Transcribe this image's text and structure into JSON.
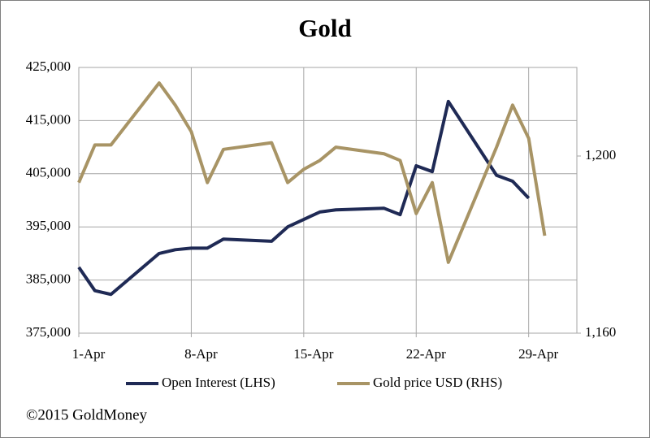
{
  "chart_data": {
    "type": "line",
    "title": "Gold",
    "x": [
      1,
      2,
      3,
      6,
      7,
      8,
      9,
      10,
      13,
      14,
      15,
      16,
      17,
      20,
      21,
      22,
      23,
      24,
      27,
      28,
      29,
      30
    ],
    "xlim": [
      1,
      32
    ],
    "xticks": [
      {
        "value": 1,
        "label": "1-Apr"
      },
      {
        "value": 8,
        "label": "8-Apr"
      },
      {
        "value": 15,
        "label": "15-Apr"
      },
      {
        "value": 22,
        "label": "22-Apr"
      },
      {
        "value": 29,
        "label": "29-Apr"
      }
    ],
    "ylim": [
      375000,
      425000
    ],
    "yticks": [
      {
        "value": 375000,
        "label": "375,000"
      },
      {
        "value": 385000,
        "label": "385,000"
      },
      {
        "value": 395000,
        "label": "395,000"
      },
      {
        "value": 405000,
        "label": "405,000"
      },
      {
        "value": 415000,
        "label": "415,000"
      },
      {
        "value": 425000,
        "label": "425,000"
      }
    ],
    "y2lim": [
      1160,
      1220
    ],
    "y2ticks": [
      {
        "value": 1160,
        "label": "1,160"
      },
      {
        "value": 1200,
        "label": "1,200"
      }
    ],
    "grid": true,
    "legend": "bottom",
    "series": [
      {
        "name": "Open Interest (LHS)",
        "color": "#1f2a55",
        "values": [
          387400,
          383000,
          382300,
          390000,
          390700,
          391000,
          391000,
          392700,
          392300,
          395000,
          396400,
          397800,
          398200,
          398500,
          397300,
          406500,
          405400,
          418600,
          404700,
          403600,
          400400,
          null
        ]
      },
      {
        "name": "Gold price USD (RHS)",
        "color": "#a89465",
        "axis": "y2",
        "values": [
          1194,
          1202.5,
          1202.5,
          1216.5,
          1211.5,
          1205.5,
          1194,
          1201.5,
          1203,
          1194,
          1197,
          1199,
          1202,
          1200.5,
          1199,
          1187,
          1194,
          1176,
          1202,
          1211.5,
          1204,
          1182
        ]
      }
    ],
    "footer": "©2015 GoldMoney"
  }
}
